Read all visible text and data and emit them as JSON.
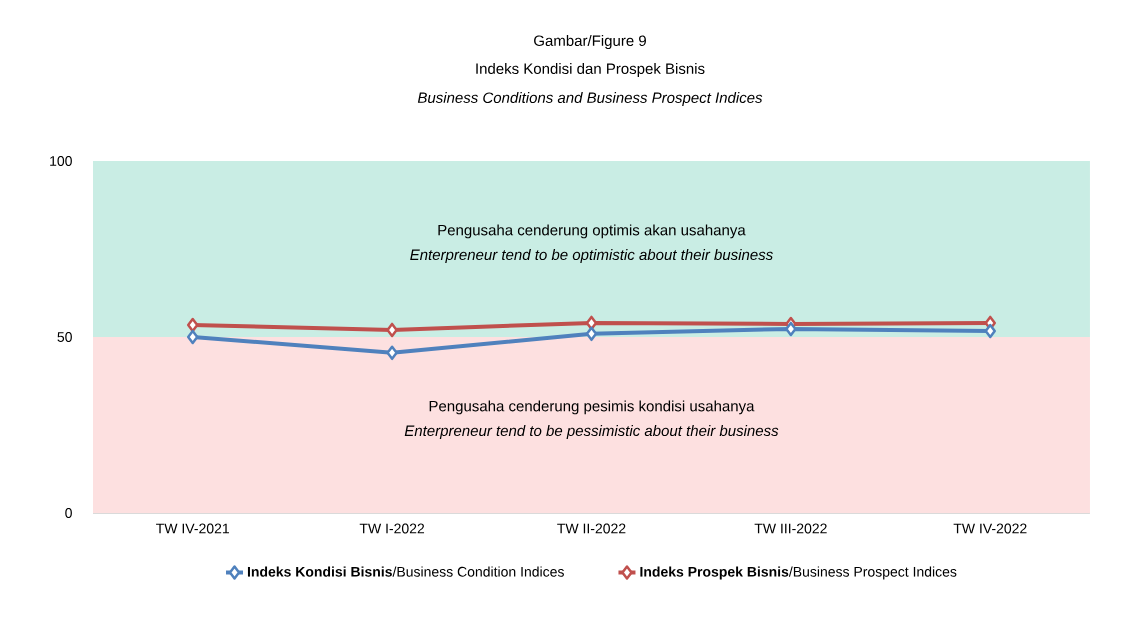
{
  "chart_data": {
    "type": "line",
    "title": "Gambar/Figure 9",
    "subtitle": "Indeks Kondisi dan Prospek Bisnis",
    "annotations": [
      "Business Conditions and Business Prospect Indices",
      "Enterpreneur tend to be optimistic about their business",
      "Enterpreneur tend to be pessimistic about their business"
    ],
    "categories": [
      "TW IV-2021",
      "TW I-2022",
      "TW II-2022",
      "TW III-2022",
      "TW IV-2022"
    ],
    "series": [
      {
        "name": "**Indeks Kondisi Bisnis**/Business Condition Indices",
        "color": "#4f81bd",
        "values": [
          50.0,
          45.5,
          50.9,
          52.3,
          51.7
        ]
      },
      {
        "name": "**Indeks Prospek Bisnis**/Business Prospect Indices",
        "color": "#c0504d",
        "values": [
          53.4,
          52.0,
          54.0,
          53.7,
          54.0
        ]
      }
    ],
    "bands": [
      {
        "axis": "y",
        "from": 50,
        "to": 100,
        "label": "Pengusaha cenderung optimis akan usahanya",
        "color": "#c9ede4"
      },
      {
        "axis": "y",
        "from": 0,
        "to": 50,
        "label": "Pengusaha cenderung pesimis kondisi usahanya",
        "color": "#fde0e0"
      }
    ],
    "ylim": [
      0,
      100
    ],
    "yticks": [
      0,
      50,
      100
    ],
    "grid": false,
    "legend": "bottom",
    "marker": "diamond",
    "line_style": "solid"
  }
}
